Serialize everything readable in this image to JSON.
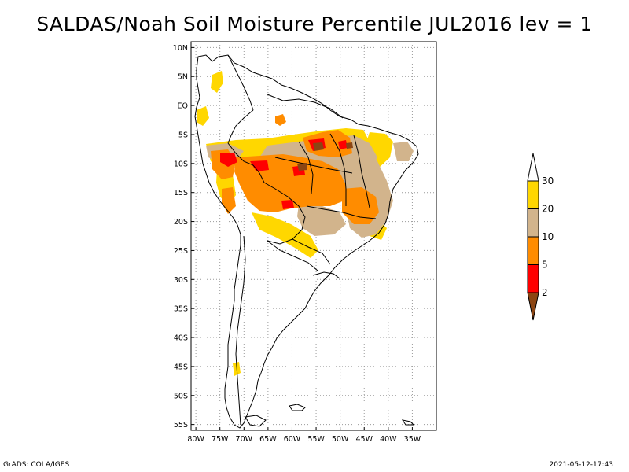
{
  "title": "SALDAS/Noah Soil Moisture Percentile JUL2016 lev = 1",
  "footer": {
    "left": "GrADS: COLA/IGES",
    "right": "2021-05-12-17:43"
  },
  "map": {
    "lon_range": [
      -81,
      -30
    ],
    "lat_range": [
      -56,
      11
    ],
    "lon_ticks": [
      {
        "value": -80,
        "label": "80W"
      },
      {
        "value": -75,
        "label": "75W"
      },
      {
        "value": -70,
        "label": "70W"
      },
      {
        "value": -65,
        "label": "65W"
      },
      {
        "value": -60,
        "label": "60W"
      },
      {
        "value": -55,
        "label": "55W"
      },
      {
        "value": -50,
        "label": "50W"
      },
      {
        "value": -45,
        "label": "45W"
      },
      {
        "value": -40,
        "label": "40W"
      },
      {
        "value": -35,
        "label": "35W"
      }
    ],
    "lat_ticks": [
      {
        "value": 10,
        "label": "10N"
      },
      {
        "value": 5,
        "label": "5N"
      },
      {
        "value": 0,
        "label": "EQ"
      },
      {
        "value": -5,
        "label": "5S"
      },
      {
        "value": -10,
        "label": "10S"
      },
      {
        "value": -15,
        "label": "15S"
      },
      {
        "value": -20,
        "label": "20S"
      },
      {
        "value": -25,
        "label": "25S"
      },
      {
        "value": -30,
        "label": "30S"
      },
      {
        "value": -35,
        "label": "35S"
      },
      {
        "value": -40,
        "label": "40S"
      },
      {
        "value": -45,
        "label": "45S"
      },
      {
        "value": -50,
        "label": "50S"
      },
      {
        "value": -55,
        "label": "55S"
      }
    ],
    "grid": true
  },
  "legend": {
    "levels": [
      "2",
      "5",
      "10",
      "20",
      "30"
    ],
    "colors": [
      "#8b4513",
      "#ff0000",
      "#ff8c00",
      "#d2b48c",
      "#ffd700",
      "#ffffff"
    ]
  },
  "colors": {
    "lt2": "#8b4513",
    "c2_5": "#ff0000",
    "c5_10": "#ff8c00",
    "c10_20": "#d2b48c",
    "c20_30": "#ffd700",
    "gt30": "#ffffff"
  }
}
